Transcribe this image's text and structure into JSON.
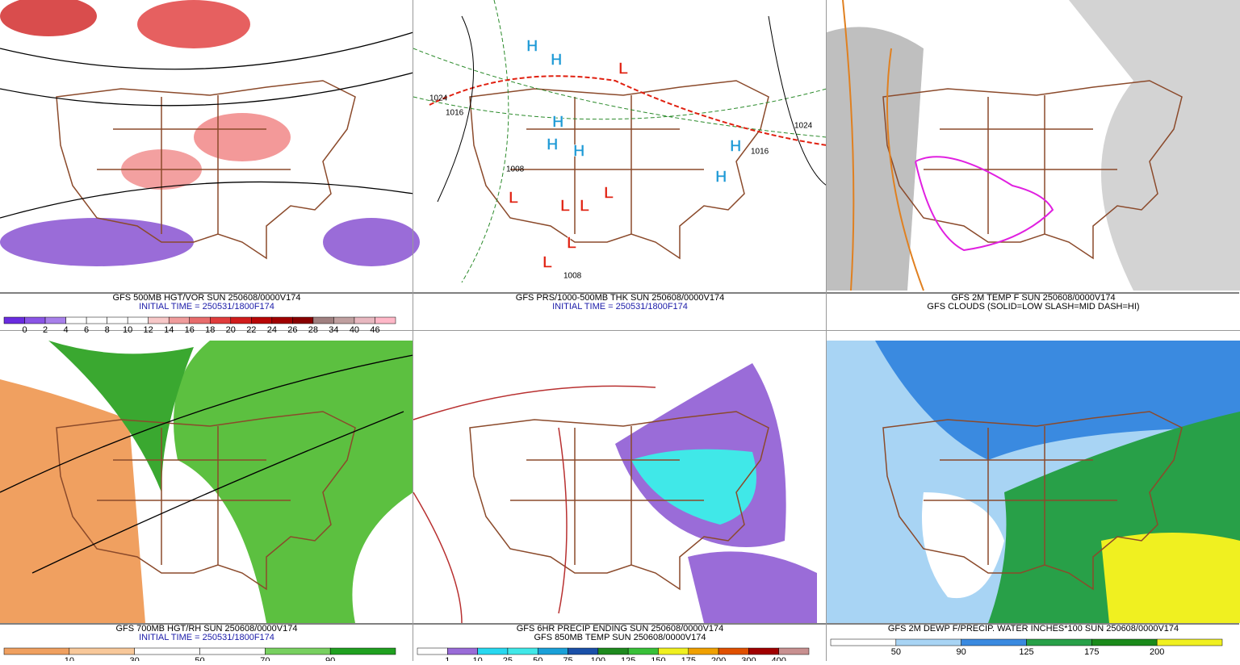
{
  "panels": [
    {
      "caption": [
        "GFS 500MB HGT/VOR SUN 250608/0000V174",
        "INITIAL TIME = 250531/1800F174"
      ],
      "caption_colors": [
        "#000000",
        "#1a1aa8"
      ],
      "colorbar": {
        "labels": [
          0,
          2,
          4,
          6,
          8,
          10,
          12,
          14,
          16,
          18,
          20,
          22,
          24,
          26,
          28,
          34,
          40,
          46
        ],
        "colors": [
          "#6a2ce0",
          "#8a55e6",
          "#a880ea",
          "#ffffff",
          "#ffffff",
          "#ffffff",
          "#ffffff",
          "#f7c8c8",
          "#f09c9c",
          "#e86c6c",
          "#e03c3c",
          "#d01c1c",
          "#b80606",
          "#a00000",
          "#880000",
          "#a08080",
          "#c0a0a0",
          "#e8b8c0",
          "#ffb8c8"
        ]
      }
    },
    {
      "caption": [
        "GFS PRS/1000-500MB THK SUN 250608/0000V174",
        "INITIAL TIME = 250531/1800F174"
      ],
      "caption_colors": [
        "#000000",
        "#1a1aa8"
      ],
      "map_labels": [
        {
          "text": "H",
          "color": "#1e9ad6"
        },
        {
          "text": "H",
          "color": "#1e9ad6"
        },
        {
          "text": "H",
          "color": "#1e9ad6"
        },
        {
          "text": "H",
          "color": "#1e9ad6"
        },
        {
          "text": "H",
          "color": "#1e9ad6"
        },
        {
          "text": "H",
          "color": "#1e9ad6"
        },
        {
          "text": "H",
          "color": "#1e9ad6"
        },
        {
          "text": "L",
          "color": "#e02010"
        },
        {
          "text": "L",
          "color": "#e02010"
        },
        {
          "text": "L",
          "color": "#e02010"
        },
        {
          "text": "L",
          "color": "#e02010"
        },
        {
          "text": "L",
          "color": "#e02010"
        },
        {
          "text": "L",
          "color": "#e02010"
        },
        {
          "text": "L",
          "color": "#e02010"
        },
        {
          "text": "1024",
          "color": "#000000"
        },
        {
          "text": "1016",
          "color": "#000000"
        },
        {
          "text": "1008",
          "color": "#000000"
        },
        {
          "text": "1024",
          "color": "#000000"
        },
        {
          "text": "1016",
          "color": "#000000"
        },
        {
          "text": "1008",
          "color": "#000000"
        }
      ]
    },
    {
      "caption": [
        "GFS 2M TEMP F SUN 250608/0000V174",
        "GFS CLOUDS (SOLID=LOW SLASH=MID DASH=HI)"
      ],
      "caption_colors": [
        "#000000",
        "#000000"
      ]
    },
    {
      "caption": [
        "GFS 700MB HGT/RH SUN 250608/0000V174",
        "INITIAL TIME = 250531/1800F174"
      ],
      "caption_colors": [
        "#000000",
        "#1a1aa8"
      ],
      "colorbar": {
        "labels": [
          10,
          30,
          50,
          70,
          90
        ],
        "colors": [
          "#f0a060",
          "#f8c89a",
          "#ffffff",
          "#ffffff",
          "#78d060",
          "#20a020"
        ]
      }
    },
    {
      "caption": [
        "GFS 6HR PRECIP ENDING SUN 250608/0000V174",
        "GFS 850MB TEMP SUN 250608/0000V174"
      ],
      "caption_colors": [
        "#000000",
        "#000000"
      ],
      "colorbar": {
        "labels": [
          1,
          10,
          25,
          50,
          75,
          100,
          125,
          150,
          175,
          200,
          300,
          400
        ],
        "colors": [
          "#ffffff",
          "#9a6cd8",
          "#28d8f0",
          "#40e8e8",
          "#1aa0d8",
          "#1a50a8",
          "#1e8a1e",
          "#38c038",
          "#f0f020",
          "#f0a000",
          "#e05000",
          "#a00000",
          "#c89090"
        ]
      }
    },
    {
      "caption": [
        "GFS 2M DEWP F/PRECIP. WATER INCHES*100 SUN 250608/0000V174"
      ],
      "caption_colors": [
        "#000000"
      ],
      "colorbar": {
        "labels": [
          50,
          90,
          125,
          175,
          200
        ],
        "colors": [
          "#ffffff",
          "#a8d4f4",
          "#3a8ae0",
          "#28a048",
          "#1a8a1a",
          "#f0f020"
        ]
      }
    }
  ]
}
